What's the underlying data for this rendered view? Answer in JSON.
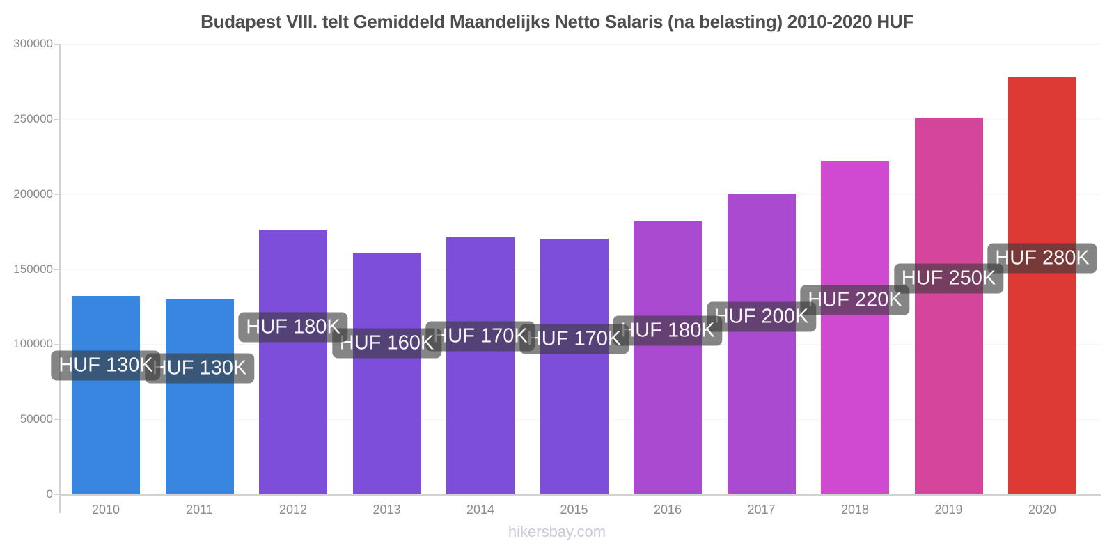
{
  "title": "Budapest VIII. telt Gemiddeld Maandelijks Netto Salaris (na belasting) 2010-2020 HUF",
  "watermark": "hikersbay.com",
  "chart_data": {
    "type": "bar",
    "title": "Budapest VIII. telt Gemiddeld Maandelijks Netto Salaris (na belasting) 2010-2020 HUF",
    "xlabel": "",
    "ylabel": "",
    "ylim": [
      0,
      300000
    ],
    "y_ticks": [
      0,
      50000,
      100000,
      150000,
      200000,
      250000,
      300000
    ],
    "grid": "horizontal-light",
    "legend": "none",
    "categories": [
      "2010",
      "2011",
      "2012",
      "2013",
      "2014",
      "2015",
      "2016",
      "2017",
      "2018",
      "2019",
      "2020"
    ],
    "values": [
      132000,
      130500,
      176000,
      161000,
      171000,
      170000,
      182000,
      200500,
      222000,
      251000,
      278000
    ],
    "bar_labels": [
      "HUF 130K",
      "HUF 130K",
      "HUF 180K",
      "HUF 160K",
      "HUF 170K",
      "HUF 170K",
      "HUF 180K",
      "HUF 200K",
      "HUF 220K",
      "HUF 250K",
      "HUF 280K"
    ],
    "bar_colors": [
      "#3986e0",
      "#3986e0",
      "#7d4ed9",
      "#7d4ed9",
      "#7d4ed9",
      "#7d4ed9",
      "#a94ad0",
      "#a94ad0",
      "#cf4ad0",
      "#d6459c",
      "#dd3a35"
    ],
    "colors": {
      "label_bg": "rgba(58,58,58,0.62)",
      "label_text": "rgba(255,255,255,0.96)",
      "axis": "#d2d2d2",
      "grid": "#f5f5f5",
      "tick_text": "#8c8c8c",
      "title_text": "#4e4e4e",
      "watermark_text": "#c9c9d9"
    }
  }
}
